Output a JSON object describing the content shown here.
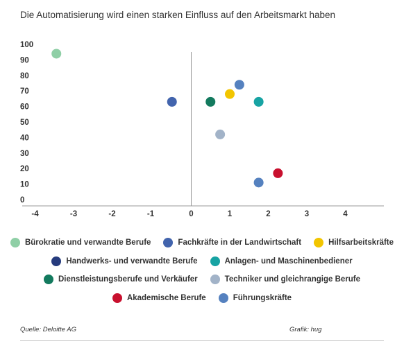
{
  "title": "Die Automatisierung wird einen starken Einfluss auf den Arbeitsmarkt haben",
  "source": "Quelle: Deloitte AG",
  "credit": "Grafik: hug",
  "chart_data": {
    "type": "scatter",
    "xlim": [
      -4,
      5
    ],
    "ylim": [
      0,
      100
    ],
    "x_ticks": [
      -4,
      -3,
      -2,
      -1,
      0,
      1,
      2,
      3,
      4
    ],
    "y_ticks": [
      0,
      10,
      20,
      30,
      40,
      50,
      60,
      70,
      80,
      90,
      100
    ],
    "grid": false,
    "legend_position": "bottom",
    "series": [
      {
        "name": "Bürokratie und verwandte Berufe",
        "color": "#8fcfa6",
        "points": [
          {
            "x": -3.5,
            "y": 94
          }
        ]
      },
      {
        "name": "Fachkräfte in der Landwirtschaft",
        "color": "#4264ad",
        "points": [
          {
            "x": -0.5,
            "y": 63
          }
        ]
      },
      {
        "name": "Hilfsarbeitskräfte",
        "color": "#f2c500",
        "points": [
          {
            "x": 1.0,
            "y": 68
          }
        ]
      },
      {
        "name": "Handwerks- und verwandte Berufe",
        "color": "#263b7d",
        "points": []
      },
      {
        "name": "Anlagen- und Maschinenbediener",
        "color": "#17a3a3",
        "points": [
          {
            "x": 1.75,
            "y": 63
          }
        ]
      },
      {
        "name": "Dienstleistungsberufe und Verkäufer",
        "color": "#137a5e",
        "points": [
          {
            "x": 0.5,
            "y": 63
          }
        ]
      },
      {
        "name": "Techniker und gleichrangige Berufe",
        "color": "#a2b3c8",
        "points": [
          {
            "x": 0.75,
            "y": 42
          }
        ]
      },
      {
        "name": "Akademische Berufe",
        "color": "#c8102e",
        "points": [
          {
            "x": 2.25,
            "y": 17
          }
        ]
      },
      {
        "name": "Führungskräfte",
        "color": "#5581bf",
        "points": [
          {
            "x": 1.25,
            "y": 74
          },
          {
            "x": 1.75,
            "y": 11
          }
        ]
      }
    ]
  },
  "legend_rows": [
    [
      0,
      1,
      2
    ],
    [
      3,
      4
    ],
    [
      5,
      6
    ],
    [
      7,
      8
    ]
  ]
}
